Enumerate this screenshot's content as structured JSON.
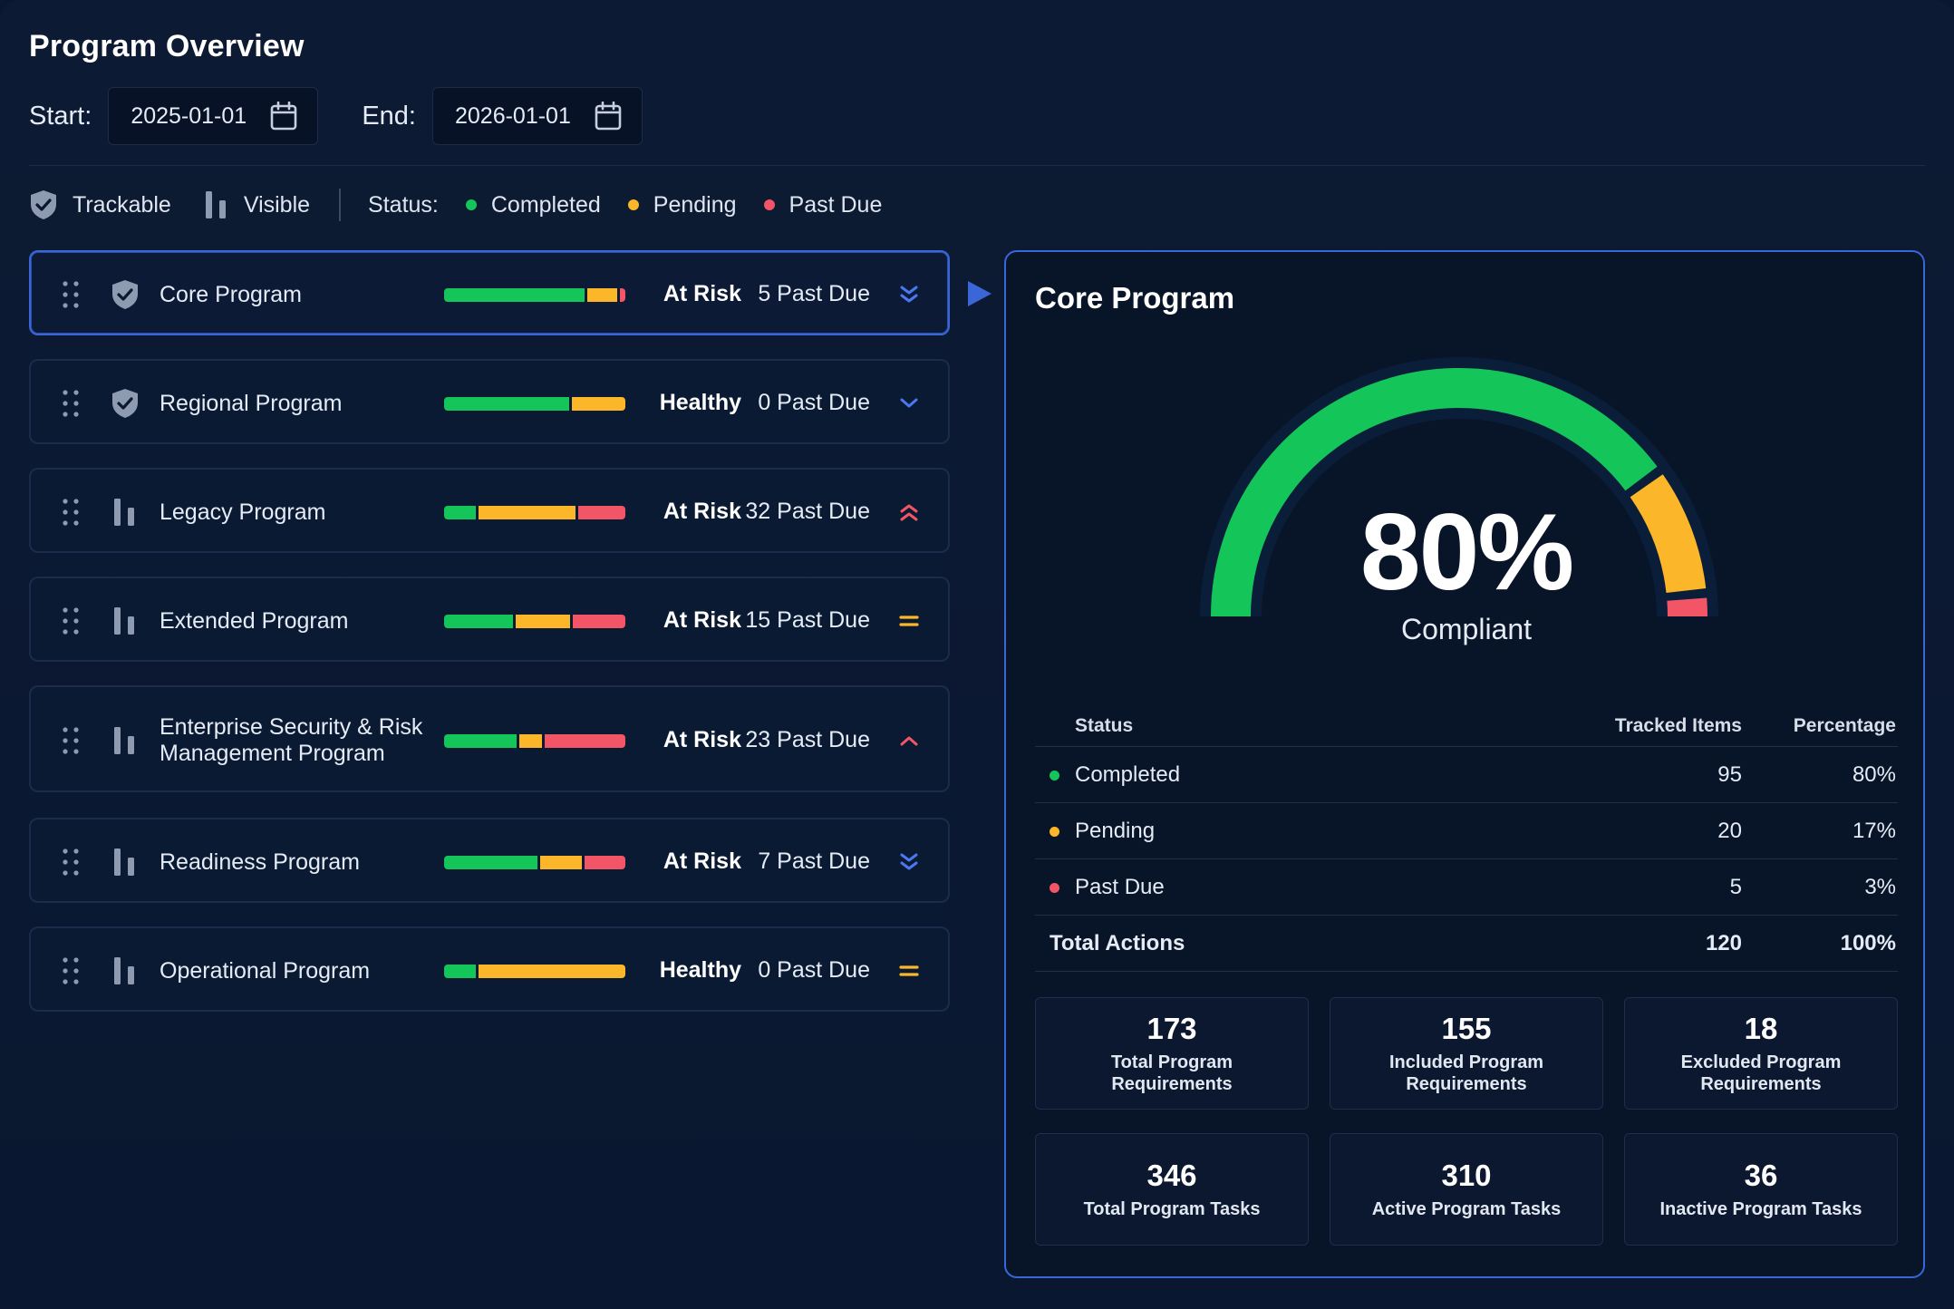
{
  "header": {
    "title": "Program Overview",
    "start_label": "Start:",
    "start_value": "2025-01-01",
    "end_label": "End:",
    "end_value": "2026-01-01"
  },
  "legend": {
    "trackable": "Trackable",
    "visible": "Visible",
    "status_label": "Status:",
    "completed": "Completed",
    "pending": "Pending",
    "past_due": "Past Due"
  },
  "colors": {
    "completed": "#14c65a",
    "pending": "#fbb629",
    "past_due": "#f25565",
    "accent": "#3a66d8"
  },
  "programs": [
    {
      "name": "Core Program",
      "icon": "shield-icon",
      "health": "At Risk",
      "past_due": "5 Past Due",
      "trend": "double-chevron-down-icon",
      "completed_fraction": 0.8,
      "pending_fraction": 0.17,
      "past_due_fraction": 0.03,
      "selected": true
    },
    {
      "name": "Regional Program",
      "icon": "shield-icon",
      "health": "Healthy",
      "past_due": "0 Past Due",
      "trend": "chevron-down-icon",
      "completed_fraction": 0.7,
      "pending_fraction": 0.3,
      "past_due_fraction": 0.0
    },
    {
      "name": "Legacy Program",
      "icon": "bars-icon",
      "health": "At Risk",
      "past_due": "32 Past Due",
      "trend": "double-chevron-up-icon",
      "completed_fraction": 0.18,
      "pending_fraction": 0.55,
      "past_due_fraction": 0.27
    },
    {
      "name": "Extended Program",
      "icon": "bars-icon",
      "health": "At Risk",
      "past_due": "15 Past Due",
      "trend": "equals-icon",
      "completed_fraction": 0.39,
      "pending_fraction": 0.31,
      "past_due_fraction": 0.3
    },
    {
      "name": "Enterprise Security & Risk Management Program",
      "icon": "bars-icon",
      "health": "At Risk",
      "past_due": "23 Past Due",
      "trend": "chevron-up-icon",
      "completed_fraction": 0.41,
      "pending_fraction": 0.13,
      "past_due_fraction": 0.46
    },
    {
      "name": "Readiness Program",
      "icon": "bars-icon",
      "health": "At Risk",
      "past_due": "7 Past Due",
      "trend": "double-chevron-down-icon",
      "completed_fraction": 0.53,
      "pending_fraction": 0.24,
      "past_due_fraction": 0.23
    },
    {
      "name": "Operational Program",
      "icon": "bars-icon",
      "health": "Healthy",
      "past_due": "0 Past Due",
      "trend": "equals-icon",
      "completed_fraction": 0.18,
      "pending_fraction": 0.82,
      "past_due_fraction": 0.0
    }
  ],
  "detail": {
    "title": "Core Program",
    "gauge_percent": "80%",
    "gauge_label": "Compliant",
    "gauge": {
      "completed": 80,
      "pending": 17,
      "past_due": 3
    },
    "table": {
      "headers": {
        "status": "Status",
        "items": "Tracked Items",
        "pct": "Percentage"
      },
      "rows": [
        {
          "status": "Completed",
          "items": "95",
          "pct": "80%"
        },
        {
          "status": "Pending",
          "items": "20",
          "pct": "17%"
        },
        {
          "status": "Past Due",
          "items": "5",
          "pct": "3%"
        }
      ],
      "total": {
        "status": "Total Actions",
        "items": "120",
        "pct": "100%"
      }
    },
    "tiles": [
      {
        "value": "173",
        "label": "Total Program Requirements"
      },
      {
        "value": "155",
        "label": "Included Program Requirements"
      },
      {
        "value": "18",
        "label": "Excluded Program Requirements"
      },
      {
        "value": "346",
        "label": "Total Program Tasks"
      },
      {
        "value": "310",
        "label": "Active Program Tasks"
      },
      {
        "value": "36",
        "label": "Inactive Program Tasks"
      }
    ]
  }
}
